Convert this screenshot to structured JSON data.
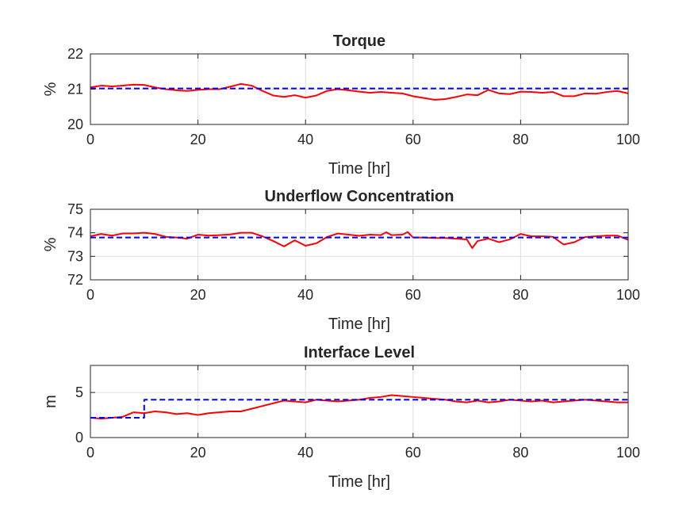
{
  "chart_data": [
    {
      "type": "line",
      "title": "Torque",
      "xlabel": "Time [hr]",
      "ylabel": "%",
      "xlim": [
        0,
        100
      ],
      "ylim": [
        20,
        22
      ],
      "xticks": [
        "0",
        "20",
        "40",
        "60",
        "80",
        "100"
      ],
      "yticks": [
        "20",
        "21",
        "22"
      ],
      "grid": true,
      "series": [
        {
          "role": "measured",
          "color": "#ff0000",
          "style": "solid",
          "x": [
            0,
            2,
            4,
            6,
            8,
            10,
            12,
            14,
            16,
            18,
            20,
            22,
            24,
            26,
            28,
            30,
            32,
            34,
            36,
            38,
            40,
            42,
            44,
            46,
            48,
            50,
            52,
            54,
            56,
            58,
            60,
            62,
            64,
            66,
            68,
            70,
            72,
            74,
            76,
            78,
            80,
            82,
            84,
            86,
            88,
            90,
            92,
            94,
            96,
            98,
            100
          ],
          "y": [
            21.05,
            21.1,
            21.08,
            21.1,
            21.13,
            21.12,
            21.05,
            21.0,
            20.97,
            20.95,
            20.98,
            21.0,
            21.0,
            21.07,
            21.15,
            21.1,
            20.95,
            20.82,
            20.78,
            20.83,
            20.76,
            20.82,
            20.95,
            21.0,
            20.97,
            20.93,
            20.9,
            20.92,
            20.9,
            20.88,
            20.8,
            20.75,
            20.7,
            20.72,
            20.78,
            20.85,
            20.83,
            20.98,
            20.88,
            20.86,
            20.93,
            20.92,
            20.9,
            20.92,
            20.8,
            20.8,
            20.88,
            20.87,
            20.92,
            20.95,
            20.88
          ]
        },
        {
          "role": "setpoint",
          "color": "#0000ff",
          "style": "dashed",
          "x": [
            0,
            100
          ],
          "y": [
            21.02,
            21.02
          ]
        }
      ]
    },
    {
      "type": "line",
      "title": "Underflow Concentration",
      "xlabel": "Time [hr]",
      "ylabel": "%",
      "xlim": [
        0,
        100
      ],
      "ylim": [
        72,
        75
      ],
      "xticks": [
        "0",
        "20",
        "40",
        "60",
        "80",
        "100"
      ],
      "yticks": [
        "72",
        "73",
        "74",
        "75"
      ],
      "grid": true,
      "series": [
        {
          "role": "measured",
          "color": "#ff0000",
          "style": "solid",
          "x": [
            0,
            2,
            4,
            6,
            8,
            10,
            12,
            14,
            16,
            18,
            20,
            22,
            24,
            26,
            28,
            30,
            32,
            34,
            36,
            38,
            40,
            42,
            44,
            46,
            48,
            50,
            52,
            54,
            55,
            56,
            58,
            59,
            60,
            62,
            64,
            66,
            68,
            70,
            71,
            72,
            74,
            76,
            78,
            80,
            82,
            84,
            86,
            88,
            90,
            92,
            94,
            96,
            98,
            100
          ],
          "y": [
            73.85,
            73.95,
            73.88,
            73.97,
            73.97,
            74.0,
            73.95,
            73.83,
            73.8,
            73.75,
            73.92,
            73.88,
            73.9,
            73.93,
            74.0,
            74.0,
            73.85,
            73.65,
            73.42,
            73.68,
            73.45,
            73.55,
            73.82,
            73.97,
            73.92,
            73.87,
            73.92,
            73.9,
            74.02,
            73.9,
            73.92,
            74.03,
            73.8,
            73.8,
            73.78,
            73.78,
            73.75,
            73.72,
            73.35,
            73.65,
            73.75,
            73.6,
            73.72,
            73.95,
            73.85,
            73.85,
            73.83,
            73.5,
            73.6,
            73.82,
            73.85,
            73.88,
            73.88,
            73.7
          ]
        },
        {
          "role": "setpoint",
          "color": "#0000ff",
          "style": "dashed",
          "x": [
            0,
            100
          ],
          "y": [
            73.8,
            73.8
          ]
        }
      ]
    },
    {
      "type": "line",
      "title": "Interface Level",
      "xlabel": "Time [hr]",
      "ylabel": "m",
      "xlim": [
        0,
        100
      ],
      "ylim": [
        0,
        8
      ],
      "xticks": [
        "0",
        "20",
        "40",
        "60",
        "80",
        "100"
      ],
      "yticks": [
        "0",
        "5"
      ],
      "grid": true,
      "series": [
        {
          "role": "measured",
          "color": "#ff0000",
          "style": "solid",
          "x": [
            0,
            2,
            4,
            6,
            8,
            10,
            12,
            14,
            16,
            18,
            20,
            22,
            24,
            26,
            28,
            30,
            32,
            34,
            36,
            38,
            40,
            42,
            44,
            46,
            48,
            50,
            52,
            54,
            56,
            58,
            60,
            62,
            64,
            66,
            68,
            70,
            72,
            74,
            76,
            78,
            80,
            82,
            84,
            86,
            88,
            90,
            92,
            94,
            96,
            98,
            100
          ],
          "y": [
            2.2,
            2.1,
            2.2,
            2.3,
            2.8,
            2.7,
            2.9,
            2.8,
            2.6,
            2.7,
            2.5,
            2.7,
            2.8,
            2.9,
            2.9,
            3.2,
            3.5,
            3.8,
            4.1,
            4.0,
            3.9,
            4.2,
            4.1,
            4.0,
            4.1,
            4.2,
            4.4,
            4.5,
            4.7,
            4.6,
            4.5,
            4.4,
            4.3,
            4.2,
            4.0,
            3.9,
            4.1,
            3.9,
            4.0,
            4.2,
            4.1,
            4.0,
            4.1,
            3.9,
            4.0,
            4.1,
            4.2,
            4.1,
            4.0,
            3.9,
            3.9
          ]
        },
        {
          "role": "setpoint",
          "color": "#0000ff",
          "style": "dashed",
          "x": [
            0,
            10,
            10,
            100
          ],
          "y": [
            2.2,
            2.2,
            4.2,
            4.2
          ]
        }
      ]
    }
  ]
}
